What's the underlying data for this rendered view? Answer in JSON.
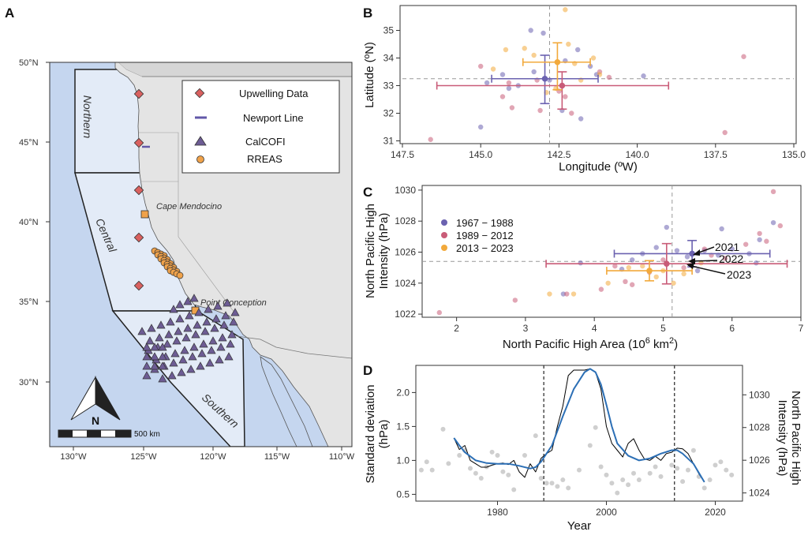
{
  "panels": {
    "a": "A",
    "b": "B",
    "c": "C",
    "d": "D"
  },
  "map": {
    "lat_ticks": [
      "50°N",
      "45°N",
      "40°N",
      "35°N",
      "30°N"
    ],
    "lon_ticks": [
      "130°W",
      "125°W",
      "120°W",
      "115°W",
      "110°W"
    ],
    "regions": {
      "northern": "Northern",
      "central": "Central",
      "southern": "Southern"
    },
    "places": {
      "mendocino": "Cape Mendocino",
      "conception": "Point Conception"
    },
    "legend": {
      "upwelling": "Upwelling Data",
      "newport": "Newport Line",
      "calcofi": "CalCOFI",
      "rreas": "RREAS"
    },
    "compass": "N",
    "scalebar": "500 km",
    "colors": {
      "ocean": "#c5d6ef",
      "region": "#e3ebf7",
      "land": "#e4e4e4",
      "upwelling": "#d9605f",
      "newport": "#6258a8",
      "calcofi": "#6d5c94",
      "rreas": "#f0a24a"
    }
  },
  "chart_data": [
    {
      "panel": "B",
      "type": "scatter",
      "xlabel": "Longitude (ºW)",
      "ylabel": "Latitude (ºN)",
      "xlim": [
        147.5,
        135.0
      ],
      "ylim": [
        30.9,
        35.9
      ],
      "x_ticks": [
        "147.5",
        "145.0",
        "142.5",
        "140.0",
        "137.5",
        "135.0"
      ],
      "y_ticks": [
        "31",
        "32",
        "33",
        "34",
        "35"
      ],
      "reference_lines": {
        "x": 142.8,
        "y": 33.25
      },
      "series": [
        {
          "color": "#6b62b0",
          "points": [
            [
              145.0,
              31.5
            ],
            [
              143.8,
              33.0
            ],
            [
              144.1,
              32.9
            ],
            [
              143.3,
              33.5
            ],
            [
              142.8,
              33.2
            ],
            [
              141.3,
              33.4
            ],
            [
              139.8,
              33.35
            ],
            [
              141.8,
              31.8
            ],
            [
              142.4,
              32.1
            ],
            [
              143.0,
              34.9
            ],
            [
              144.8,
              33.1
            ],
            [
              141.9,
              34.3
            ],
            [
              143.4,
              35.0
            ],
            [
              142.3,
              33.9
            ],
            [
              144.3,
              33.4
            ],
            [
              141.5,
              33.7
            ]
          ],
          "mean": [
            142.95,
            33.25
          ],
          "xerr": [
            1.7,
            1.7
          ],
          "yerr": [
            0.9,
            0.85
          ]
        },
        {
          "color": "#c95c78",
          "points": [
            [
              146.6,
              31.05
            ],
            [
              144.3,
              32.6
            ],
            [
              143.1,
              32.1
            ],
            [
              142.1,
              32.0
            ],
            [
              141.2,
              33.5
            ],
            [
              136.6,
              34.05
            ],
            [
              137.2,
              31.3
            ],
            [
              144.1,
              33.1
            ],
            [
              143.2,
              33.2
            ],
            [
              142.5,
              32.8
            ],
            [
              145.0,
              33.7
            ],
            [
              140.9,
              33.3
            ],
            [
              142.3,
              32.6
            ],
            [
              144.0,
              32.2
            ]
          ],
          "mean": [
            142.4,
            33.0
          ],
          "xerr": [
            3.4,
            4.0
          ],
          "yerr": [
            0.85,
            0.5
          ]
        },
        {
          "color": "#f2a93b",
          "points": [
            [
              142.3,
              35.75
            ],
            [
              141.4,
              34.0
            ],
            [
              142.6,
              32.9
            ],
            [
              142.0,
              33.8
            ],
            [
              143.3,
              34.1
            ],
            [
              144.2,
              34.3
            ],
            [
              141.2,
              33.4
            ],
            [
              142.9,
              32.75
            ],
            [
              142.2,
              34.5
            ],
            [
              141.8,
              33.2
            ],
            [
              143.6,
              34.35
            ],
            [
              144.6,
              33.6
            ]
          ],
          "mean": [
            142.55,
            33.85
          ],
          "xerr": [
            1.05,
            1.1
          ],
          "yerr": [
            1.0,
            0.7
          ]
        }
      ]
    },
    {
      "panel": "C",
      "type": "scatter",
      "xlabel": "North Pacific High Area  (10",
      "xlabel_sup": "6",
      "xlabel_tail": " km",
      "xlabel_sup2": "2",
      "xlabel_close": ")",
      "ylabel": [
        "North Pacific High",
        "Intensity (hPa)"
      ],
      "xlim": [
        1.5,
        7.0
      ],
      "ylim": [
        1021.8,
        1030.3
      ],
      "x_ticks": [
        "2",
        "3",
        "4",
        "5",
        "6",
        "7"
      ],
      "y_ticks": [
        "1022",
        "1024",
        "1026",
        "1028",
        "1030"
      ],
      "reference_lines": {
        "x": 5.13,
        "y": 1025.4
      },
      "legend": [
        "1967 − 1988",
        "1989 − 2012",
        "2013 − 2023"
      ],
      "annotations": [
        "2021",
        "2022",
        "2023"
      ],
      "series": [
        {
          "name": "1967 − 1988",
          "color": "#6b62b0",
          "points": [
            [
              3.55,
              1023.3
            ],
            [
              3.8,
              1025.3
            ],
            [
              4.55,
              1025.5
            ],
            [
              4.9,
              1026.3
            ],
            [
              5.05,
              1027.6
            ],
            [
              5.2,
              1026.1
            ],
            [
              5.35,
              1025.7
            ],
            [
              5.6,
              1026.1
            ],
            [
              5.8,
              1025.8
            ],
            [
              5.85,
              1027.5
            ],
            [
              6.0,
              1026.2
            ],
            [
              6.25,
              1025.9
            ],
            [
              6.4,
              1026.8
            ],
            [
              6.6,
              1027.9
            ],
            [
              4.4,
              1024.9
            ],
            [
              5.5,
              1024.8
            ],
            [
              6.35,
              1025.3
            ],
            [
              4.7,
              1025.9
            ]
          ],
          "mean": [
            5.42,
            1025.9
          ],
          "xerr": [
            1.13,
            1.13
          ],
          "yerr": [
            0.85,
            0.85
          ]
        },
        {
          "name": "1989 − 2012",
          "color": "#c95c78",
          "points": [
            [
              1.75,
              1022.1
            ],
            [
              2.85,
              1022.9
            ],
            [
              3.6,
              1023.3
            ],
            [
              4.1,
              1023.6
            ],
            [
              4.45,
              1024.1
            ],
            [
              4.8,
              1024.7
            ],
            [
              5.0,
              1025.5
            ],
            [
              5.3,
              1025.0
            ],
            [
              5.6,
              1026.2
            ],
            [
              5.7,
              1025.8
            ],
            [
              6.2,
              1026.5
            ],
            [
              6.4,
              1027.2
            ],
            [
              6.5,
              1026.7
            ],
            [
              6.6,
              1029.9
            ],
            [
              6.7,
              1027.7
            ],
            [
              4.55,
              1023.9
            ],
            [
              5.9,
              1025.6
            ],
            [
              4.3,
              1025.1
            ]
          ],
          "mean": [
            5.05,
            1025.25
          ],
          "xerr": [
            1.75,
            1.75
          ],
          "yerr": [
            1.3,
            1.3
          ]
        },
        {
          "name": "2013 − 2023",
          "color": "#f2a93b",
          "points": [
            [
              3.35,
              1023.3
            ],
            [
              3.7,
              1023.3
            ],
            [
              4.2,
              1024.0
            ],
            [
              4.5,
              1025.0
            ],
            [
              4.7,
              1025.1
            ],
            [
              4.9,
              1024.4
            ],
            [
              5.3,
              1024.6
            ],
            [
              5.15,
              1024.0
            ],
            [
              5.55,
              1025.3
            ],
            [
              5.0,
              1024.8
            ]
          ],
          "mean": [
            4.8,
            1024.8
          ],
          "xerr": [
            0.62,
            0.62
          ],
          "yerr": [
            0.65,
            0.65
          ]
        }
      ]
    },
    {
      "panel": "D",
      "type": "line",
      "xlabel": "Year",
      "ylabel_left": [
        "Standard deviation",
        "(hPa)"
      ],
      "ylabel_right": [
        "North Pacific High",
        "Intensity (hPa)"
      ],
      "xlim": [
        1965,
        2025
      ],
      "ylim_left": [
        0.4,
        2.4
      ],
      "ylim_right": [
        1023.5,
        1031.8
      ],
      "x_ticks": [
        "1980",
        "2000",
        "2020"
      ],
      "y_ticks_left": [
        "0.5",
        "1.0",
        "1.5",
        "2.0"
      ],
      "y_ticks_right": [
        "1024",
        "1026",
        "1028",
        "1030"
      ],
      "vertical_lines": [
        1988.5,
        2012.5
      ],
      "scatter_color": "#cfcfcf",
      "scatter": [
        [
          1966,
          1025.4
        ],
        [
          1967,
          1025.9
        ],
        [
          1968,
          1025.4
        ],
        [
          1970,
          1027.9
        ],
        [
          1971,
          1025.8
        ],
        [
          1973,
          1026.3
        ],
        [
          1974,
          1026.6
        ],
        [
          1975,
          1025.5
        ],
        [
          1976,
          1025.2
        ],
        [
          1977,
          1024.9
        ],
        [
          1978,
          1025.6
        ],
        [
          1979,
          1026.5
        ],
        [
          1980,
          1026.3
        ],
        [
          1981,
          1025.3
        ],
        [
          1982,
          1025.1
        ],
        [
          1983,
          1024.2
        ],
        [
          1985,
          1026.3
        ],
        [
          1987,
          1027.5
        ],
        [
          1988,
          1024.9
        ],
        [
          1989,
          1024.6
        ],
        [
          1990,
          1024.6
        ],
        [
          1991,
          1024.4
        ],
        [
          1992,
          1024.8
        ],
        [
          1993,
          1024.3
        ],
        [
          1995,
          1025.4
        ],
        [
          1997,
          1026.9
        ],
        [
          1998,
          1028.0
        ],
        [
          1999,
          1025.6
        ],
        [
          2000,
          1025.1
        ],
        [
          2001,
          1024.6
        ],
        [
          2002,
          1024.0
        ],
        [
          2003,
          1024.8
        ],
        [
          2004,
          1024.5
        ],
        [
          2005,
          1025.2
        ],
        [
          2006,
          1024.8
        ],
        [
          2008,
          1025.2
        ],
        [
          2009,
          1025.6
        ],
        [
          2010,
          1025.0
        ],
        [
          2012,
          1025.7
        ],
        [
          2013,
          1025.5
        ],
        [
          2014,
          1024.7
        ],
        [
          2015,
          1025.4
        ],
        [
          2016,
          1026.6
        ],
        [
          2017,
          1025.0
        ],
        [
          2018,
          1024.3
        ],
        [
          2019,
          1024.8
        ],
        [
          2020,
          1025.7
        ],
        [
          2021,
          1025.9
        ],
        [
          2022,
          1025.4
        ],
        [
          2023,
          1025.1
        ]
      ],
      "series": [
        {
          "color": "#000000",
          "points": [
            [
              1972,
              1.33
            ],
            [
              1973,
              1.16
            ],
            [
              1974,
              1.22
            ],
            [
              1975,
              1.0
            ],
            [
              1976,
              0.95
            ],
            [
              1977,
              0.9
            ],
            [
              1978,
              0.9
            ],
            [
              1979,
              0.93
            ],
            [
              1980,
              0.95
            ],
            [
              1981,
              0.96
            ],
            [
              1982,
              0.94
            ],
            [
              1983,
              1.0
            ],
            [
              1984,
              0.83
            ],
            [
              1985,
              0.75
            ],
            [
              1986,
              0.95
            ],
            [
              1987,
              0.83
            ],
            [
              1988,
              1.03
            ],
            [
              1989,
              1.1
            ],
            [
              1990,
              1.15
            ],
            [
              1991,
              1.5
            ],
            [
              1992,
              1.8
            ],
            [
              1993,
              2.25
            ],
            [
              1994,
              2.33
            ],
            [
              1995,
              2.33
            ],
            [
              1996,
              2.33
            ],
            [
              1997,
              2.35
            ],
            [
              1998,
              2.3
            ],
            [
              1999,
              2.05
            ],
            [
              2000,
              1.5
            ],
            [
              2001,
              1.25
            ],
            [
              2002,
              1.15
            ],
            [
              2003,
              1.05
            ],
            [
              2004,
              1.25
            ],
            [
              2005,
              1.32
            ],
            [
              2006,
              1.15
            ],
            [
              2007,
              1.02
            ],
            [
              2008,
              1.0
            ],
            [
              2009,
              1.06
            ],
            [
              2010,
              1.0
            ],
            [
              2011,
              1.1
            ],
            [
              2012,
              1.12
            ],
            [
              2013,
              1.18
            ],
            [
              2014,
              1.17
            ],
            [
              2015,
              1.1
            ],
            [
              2016,
              0.95
            ],
            [
              2017,
              0.8
            ],
            [
              2018,
              0.68
            ]
          ]
        },
        {
          "color": "#2c6fb5",
          "points": [
            [
              1972,
              1.33
            ],
            [
              1973,
              1.22
            ],
            [
              1974,
              1.12
            ],
            [
              1976,
              1.0
            ],
            [
              1978,
              0.96
            ],
            [
              1980,
              0.95
            ],
            [
              1982,
              0.95
            ],
            [
              1984,
              0.92
            ],
            [
              1986,
              0.88
            ],
            [
              1987,
              0.9
            ],
            [
              1988,
              0.98
            ],
            [
              1990,
              1.22
            ],
            [
              1992,
              1.65
            ],
            [
              1994,
              2.05
            ],
            [
              1996,
              2.3
            ],
            [
              1997,
              2.35
            ],
            [
              1998,
              2.3
            ],
            [
              1999,
              2.12
            ],
            [
              2000,
              1.82
            ],
            [
              2001,
              1.5
            ],
            [
              2002,
              1.25
            ],
            [
              2004,
              1.07
            ],
            [
              2006,
              1.0
            ],
            [
              2008,
              1.03
            ],
            [
              2010,
              1.1
            ],
            [
              2012,
              1.15
            ],
            [
              2013,
              1.15
            ],
            [
              2014,
              1.1
            ],
            [
              2016,
              0.95
            ],
            [
              2018,
              0.68
            ]
          ]
        }
      ]
    }
  ]
}
